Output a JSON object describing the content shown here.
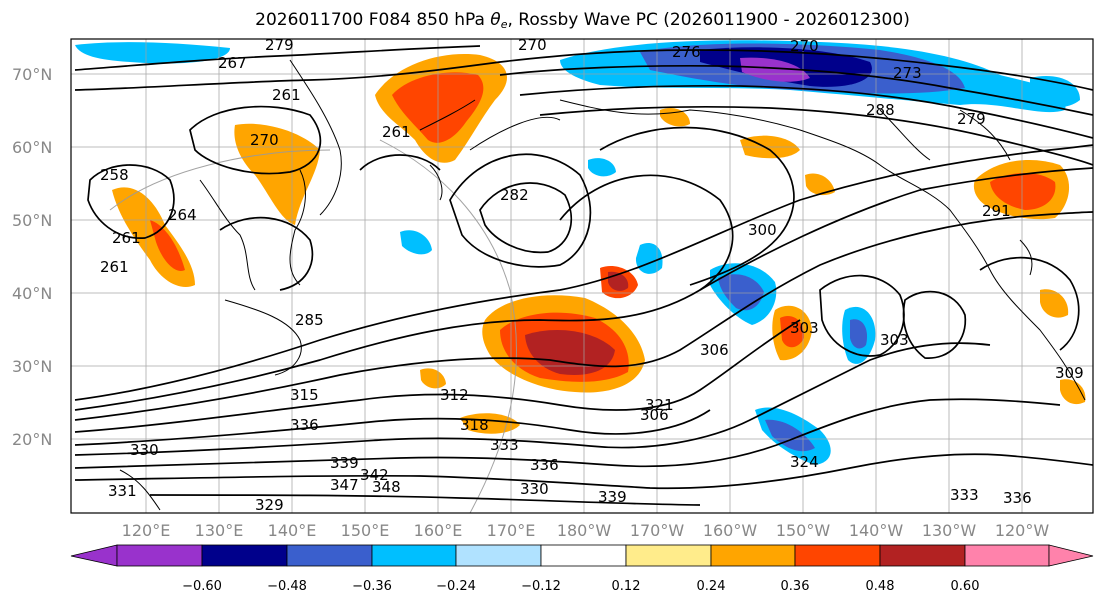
{
  "title": {
    "prefix": "2026011700 F084 850 hPa ",
    "symbol": "θ",
    "symbol_sub": "e",
    "suffix": ", Rossby Wave PC (2026011900 - 2026012300)"
  },
  "map": {
    "lat_labels": [
      "70°N",
      "60°N",
      "50°N",
      "40°N",
      "30°N",
      "20°N"
    ],
    "lon_labels": [
      "120°E",
      "130°E",
      "140°E",
      "150°E",
      "160°E",
      "170°E",
      "180°W",
      "170°W",
      "160°W",
      "150°W",
      "140°W",
      "130°W",
      "120°W"
    ],
    "contour_labels": [
      "279",
      "267",
      "270",
      "276",
      "270",
      "273",
      "279",
      "288",
      "261",
      "270",
      "261",
      "258",
      "264",
      "261",
      "261",
      "282",
      "300",
      "291",
      "303",
      "303",
      "306",
      "309",
      "285",
      "312",
      "306",
      "315",
      "318",
      "321",
      "336",
      "333",
      "336",
      "330",
      "339",
      "347",
      "348",
      "339",
      "333",
      "336",
      "324",
      "331",
      "329",
      "330",
      "342"
    ]
  },
  "colorbar": {
    "tick_labels": [
      "−0.60",
      "−0.48",
      "−0.36",
      "−0.24",
      "−0.12",
      "0.12",
      "0.24",
      "0.36",
      "0.48",
      "0.60"
    ],
    "colors": [
      "#9932cc",
      "#00008b",
      "#3a5fcd",
      "#00bfff",
      "#b0e2ff",
      "#ffffff",
      "#ffec8b",
      "#ffa500",
      "#ff4500",
      "#b22222",
      "#ff82ab"
    ]
  },
  "shading_colors": {
    "neg_light": "#b0e2ff",
    "neg_mid": "#00bfff",
    "neg_dark": "#3a5fcd",
    "neg_darker": "#00008b",
    "neg_darkest": "#9932cc",
    "pos_light": "#ffec8b",
    "pos_mid": "#ffa500",
    "pos_dark": "#ff4500",
    "pos_darker": "#b22222"
  }
}
